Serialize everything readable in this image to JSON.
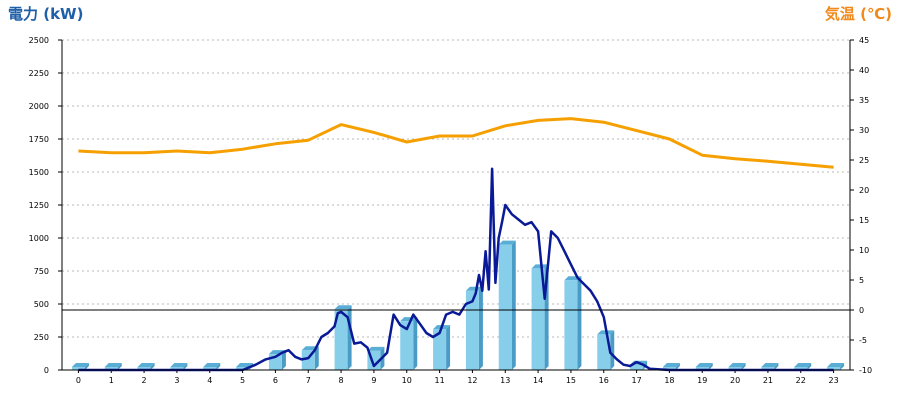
{
  "chart_data": {
    "type": "bar+line",
    "left_axis": {
      "label": "電力 (kW)",
      "ylim": [
        0,
        2500
      ],
      "ticks": [
        0,
        250,
        500,
        750,
        1000,
        1250,
        1500,
        1750,
        2000,
        2250,
        2500
      ],
      "color": "#1e5fa8"
    },
    "right_axis": {
      "label": "気温 (℃)",
      "ylim": [
        -10,
        45
      ],
      "ticks": [
        -10,
        -5,
        0,
        5,
        10,
        15,
        20,
        25,
        30,
        35,
        40,
        45
      ],
      "color": "#f08a1c"
    },
    "categories": [
      "0",
      "1",
      "2",
      "3",
      "4",
      "5",
      "6",
      "7",
      "8",
      "9",
      "10",
      "11",
      "12",
      "13",
      "14",
      "15",
      "16",
      "17",
      "18",
      "19",
      "20",
      "21",
      "22",
      "23"
    ],
    "reference_line": {
      "axis": "right",
      "value": 0
    },
    "grid": true,
    "series": [
      {
        "type": "bar",
        "axis": "left",
        "color": "#87ceeb",
        "values": [
          0,
          0,
          0,
          0,
          0,
          0,
          120,
          150,
          460,
          145,
          370,
          310,
          600,
          950,
          770,
          680,
          270,
          40,
          20,
          0,
          0,
          0,
          0,
          0
        ]
      },
      {
        "type": "line",
        "axis": "left",
        "color": "#0a1a96",
        "x": [
          0,
          1,
          2,
          3,
          4,
          5,
          5.4,
          5.7,
          6.0,
          6.2,
          6.4,
          6.6,
          6.8,
          7.0,
          7.2,
          7.4,
          7.6,
          7.8,
          7.9,
          8.0,
          8.2,
          8.4,
          8.6,
          8.8,
          9.0,
          9.2,
          9.4,
          9.6,
          9.8,
          10.0,
          10.2,
          10.4,
          10.6,
          10.8,
          11.0,
          11.2,
          11.4,
          11.6,
          11.8,
          12.0,
          12.1,
          12.2,
          12.3,
          12.4,
          12.5,
          12.6,
          12.7,
          12.8,
          12.9,
          13.0,
          13.2,
          13.4,
          13.6,
          13.8,
          14.0,
          14.2,
          14.4,
          14.6,
          14.8,
          15.0,
          15.2,
          15.4,
          15.6,
          15.8,
          16.0,
          16.2,
          16.4,
          16.6,
          16.8,
          17.0,
          17.2,
          17.4,
          18,
          19,
          20,
          21,
          22,
          23
        ],
        "values": [
          0,
          0,
          0,
          0,
          0,
          0,
          40,
          80,
          100,
          130,
          150,
          100,
          80,
          90,
          150,
          250,
          280,
          330,
          430,
          440,
          400,
          200,
          210,
          170,
          30,
          80,
          130,
          420,
          340,
          310,
          420,
          350,
          280,
          250,
          280,
          420,
          440,
          420,
          500,
          520,
          580,
          720,
          600,
          900,
          610,
          1525,
          660,
          1000,
          1120,
          1250,
          1180,
          1140,
          1100,
          1120,
          1050,
          540,
          1050,
          1000,
          900,
          800,
          700,
          650,
          600,
          520,
          400,
          130,
          80,
          40,
          30,
          60,
          40,
          10,
          0,
          0,
          0,
          0,
          0,
          0
        ]
      },
      {
        "type": "line",
        "axis": "right",
        "color": "#f5a000",
        "x": [
          0,
          1,
          2,
          3,
          4,
          5,
          6,
          7,
          8,
          9,
          10,
          11,
          12,
          13,
          14,
          15,
          16,
          17,
          18,
          19,
          20,
          21,
          22,
          23
        ],
        "values": [
          26.5,
          26.2,
          26.2,
          26.5,
          26.2,
          26.8,
          27.7,
          28.3,
          30.9,
          29.6,
          28,
          29,
          29,
          30.7,
          31.6,
          31.9,
          31.3,
          29.9,
          28.5,
          25.8,
          25.2,
          24.8,
          24.3,
          23.8
        ]
      }
    ]
  }
}
